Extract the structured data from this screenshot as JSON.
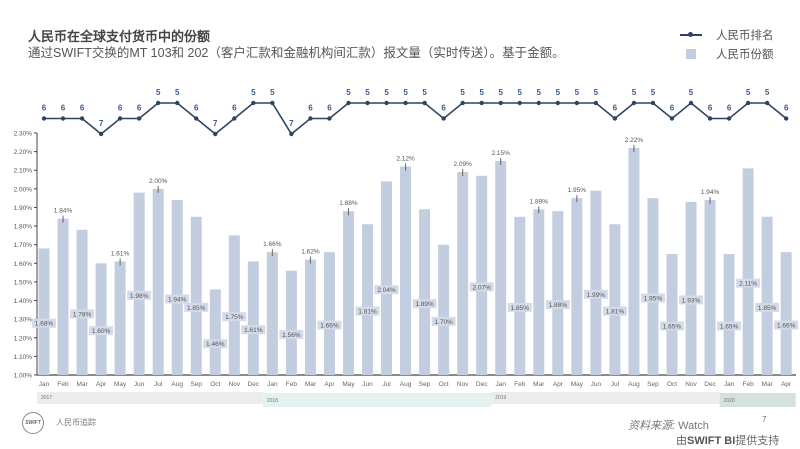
{
  "header": {
    "title": "人民币在全球支付货币中的份额",
    "subtitle": "通过SWIFT交换的MT 103和  202（客户汇款和金融机构间汇款）报文量（实时传送）。基于金额。"
  },
  "footer": {
    "logo_text": "SWIFT",
    "label": "人民币追踪",
    "source_prefix": "资料来源:",
    "source_name": " Watch",
    "page_number": "7",
    "powered_prefix": "由",
    "powered_brand": "SWIFT BI",
    "powered_suffix": "提供支持"
  },
  "colors": {
    "bar": "#c3cde0",
    "line": "#2f4461",
    "rank_label": "#3d5a8a"
  },
  "chart_data": {
    "type": "bar+line",
    "title": "人民币在全球支付货币中的份额",
    "legend": {
      "position": "top-right",
      "entries": [
        "人民币排名",
        "人民币份额"
      ]
    },
    "categories": [
      "Jan",
      "Feb",
      "Mar",
      "Apr",
      "May",
      "Jun",
      "Jul",
      "Aug",
      "Sep",
      "Oct",
      "Nov",
      "Dec",
      "Jan",
      "Feb",
      "Mar",
      "Apr",
      "May",
      "Jun",
      "Jul",
      "Aug",
      "Sep",
      "Oct",
      "Nov",
      "Dec",
      "Jan",
      "Feb",
      "Mar",
      "Apr",
      "May",
      "Jun",
      "Jul",
      "Aug",
      "Sep",
      "Oct",
      "Nov",
      "Dec",
      "Jan",
      "Feb",
      "Mar",
      "Apr"
    ],
    "years": [
      {
        "label": "2017",
        "count": 12,
        "color": "#ececec"
      },
      {
        "label": "2018",
        "count": 12,
        "color": "#e3f1f1"
      },
      {
        "label": "2019",
        "count": 12,
        "color": "#ececec"
      },
      {
        "label": "2020",
        "count": 4,
        "color": "#d3e1df"
      }
    ],
    "series": [
      {
        "name": "人民币份额",
        "type": "bar",
        "unit": "%",
        "values": [
          1.68,
          1.84,
          1.78,
          1.6,
          1.61,
          1.98,
          2.0,
          1.94,
          1.85,
          1.46,
          1.75,
          1.61,
          1.66,
          1.56,
          1.62,
          1.66,
          1.88,
          1.81,
          2.04,
          2.12,
          1.89,
          1.7,
          2.09,
          2.07,
          2.15,
          1.85,
          1.89,
          1.88,
          1.95,
          1.99,
          1.81,
          2.22,
          1.95,
          1.65,
          1.93,
          1.94,
          1.65,
          2.11,
          1.85,
          1.66
        ],
        "labels": [
          "1.68%",
          "1.84%",
          "1.78%",
          "1.60%",
          "1.61%",
          "1.98%",
          "2.00%",
          "1.94%",
          "1.85%",
          "1.46%",
          "1.75%",
          "1.61%",
          "1.66%",
          "1.56%",
          "1.62%",
          "1.66%",
          "1.88%",
          "1.81%",
          "2.04%",
          "2.12%",
          "1.89%",
          "1.70%",
          "2.09%",
          "2.07%",
          "2.15%",
          "1.85%",
          "1.89%",
          "1.88%",
          "1.95%",
          "1.99%",
          "1.81%",
          "2.22%",
          "1.95%",
          "1.65%",
          "1.93%",
          "1.94%",
          "1.65%",
          "2.11%",
          "1.85%",
          "1.66%"
        ],
        "label_above": [
          false,
          true,
          false,
          false,
          true,
          false,
          true,
          false,
          false,
          false,
          false,
          false,
          true,
          false,
          true,
          false,
          true,
          false,
          false,
          true,
          false,
          false,
          true,
          false,
          true,
          false,
          true,
          false,
          true,
          false,
          false,
          true,
          false,
          false,
          false,
          true,
          false,
          false,
          false,
          false
        ]
      },
      {
        "name": "人民币排名",
        "type": "line",
        "values": [
          6,
          6,
          6,
          7,
          6,
          6,
          5,
          5,
          6,
          7,
          6,
          5,
          5,
          7,
          6,
          6,
          5,
          5,
          5,
          5,
          5,
          6,
          5,
          5,
          5,
          5,
          5,
          5,
          5,
          5,
          6,
          5,
          5,
          6,
          5,
          6,
          6,
          5,
          5,
          6
        ],
        "labels": [
          "6",
          "6",
          "6",
          "7",
          "6",
          "6",
          "5",
          "5",
          "6",
          "7",
          "6",
          "5",
          "5",
          "7",
          "6",
          "6",
          "5",
          "5",
          "5",
          "5",
          "5",
          "6",
          "5",
          "5",
          "5",
          "5",
          "5",
          "5",
          "5",
          "5",
          "6",
          "5",
          "5",
          "6",
          "5",
          "6",
          "6",
          "5",
          "5",
          "6"
        ]
      }
    ],
    "ylim": [
      1.0,
      2.3
    ],
    "yticks": [
      "1.00%",
      "1.10%",
      "1.20%",
      "1.30%",
      "1.40%",
      "1.50%",
      "1.60%",
      "1.70%",
      "1.80%",
      "1.90%",
      "2.00%",
      "2.10%",
      "2.20%",
      "2.30%"
    ],
    "ytick_values": [
      1.0,
      1.1,
      1.2,
      1.3,
      1.4,
      1.5,
      1.6,
      1.7,
      1.8,
      1.9,
      2.0,
      2.1,
      2.2,
      2.3
    ],
    "xlabel": "",
    "ylabel": "",
    "grid": false
  }
}
